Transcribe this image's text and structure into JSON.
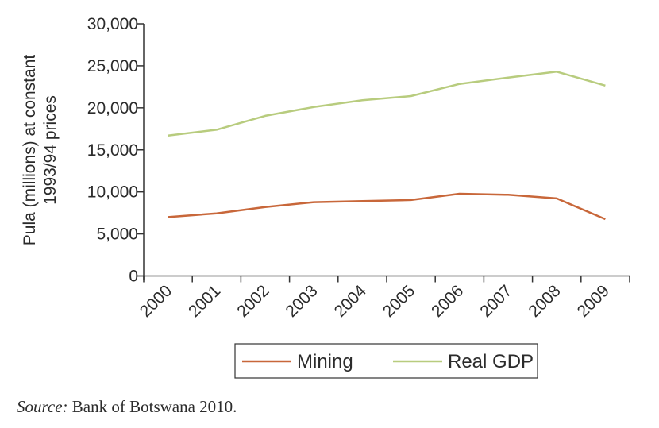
{
  "chart_data": {
    "type": "line",
    "title": "",
    "xlabel": "",
    "ylabel_lines": [
      "Pula (millions)  at constant",
      "1993/94 prices"
    ],
    "categories": [
      "2000",
      "2001",
      "2002",
      "2003",
      "2004",
      "2005",
      "2006",
      "2007",
      "2008",
      "2009"
    ],
    "ylim": [
      0,
      30000
    ],
    "yticks": [
      0,
      5000,
      10000,
      15000,
      20000,
      25000,
      30000
    ],
    "ytick_labels": [
      "0",
      "5,000",
      "10,000",
      "15,000",
      "20,000",
      "25,000",
      "30,000"
    ],
    "grid": false,
    "legend_position": "bottom-center",
    "series": [
      {
        "name": "Mining",
        "color": "#c8673a",
        "values": [
          7000,
          7450,
          8200,
          8780,
          8900,
          9030,
          9780,
          9660,
          9220,
          6760
        ]
      },
      {
        "name": "Real GDP",
        "color": "#b8cc7e",
        "values": [
          16700,
          17400,
          19050,
          20100,
          20900,
          21400,
          22850,
          23600,
          24300,
          22650
        ]
      }
    ]
  },
  "source": {
    "label": "Source:",
    "text": " Bank of Botswana 2010."
  }
}
